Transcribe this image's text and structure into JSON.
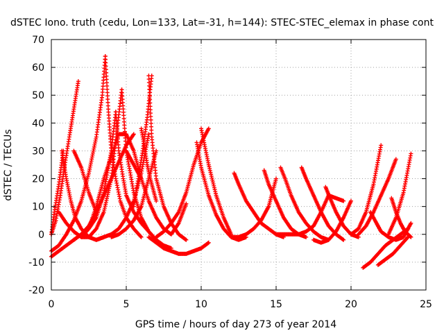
{
  "chart_data": {
    "type": "scatter",
    "title": "dSTEC Iono. truth (cedu, Lon=133, Lat=-31, h=144): STEC-STEC_elemax in phase cont",
    "xlabel": "GPS time / hours of day 273 of year 2014",
    "ylabel": "dSTEC  / TECUs",
    "xlim": [
      0,
      25
    ],
    "ylim": [
      -20,
      70
    ],
    "xticks": [
      "0",
      "5",
      "10",
      "15",
      "20",
      "25"
    ],
    "yticks": [
      "-20",
      "-10",
      "0",
      "10",
      "20",
      "30",
      "40",
      "50",
      "60",
      "70"
    ],
    "grid": true,
    "marker": "plus",
    "color": "#ff0000",
    "series": [
      {
        "x": [
          0.0,
          0.3,
          0.6,
          0.9,
          1.2,
          1.5,
          1.8
        ],
        "y": [
          0,
          5,
          14,
          25,
          35,
          45,
          55
        ]
      },
      {
        "x": [
          0.0,
          0.2,
          0.5,
          0.8
        ],
        "y": [
          0,
          8,
          18,
          30
        ]
      },
      {
        "x": [
          0.7,
          1.0,
          1.3,
          1.6,
          2.0,
          2.5,
          3.0,
          3.5
        ],
        "y": [
          30,
          20,
          12,
          6,
          2,
          -1,
          -2,
          -1
        ]
      },
      {
        "x": [
          0.0,
          0.5,
          1.0,
          1.5,
          2.0,
          2.5,
          3.0,
          3.4,
          3.6
        ],
        "y": [
          -6,
          -4,
          0,
          5,
          12,
          22,
          35,
          50,
          64
        ]
      },
      {
        "x": [
          3.6,
          3.8,
          4.0,
          4.3,
          4.6,
          5.0,
          5.5,
          6.0
        ],
        "y": [
          64,
          45,
          30,
          20,
          12,
          6,
          2,
          -1
        ]
      },
      {
        "x": [
          0.0,
          0.5,
          1.0,
          1.5,
          2.0,
          2.5,
          3.0,
          3.5,
          4.0,
          4.3
        ],
        "y": [
          -8,
          -6,
          -4,
          -2,
          0,
          2,
          6,
          15,
          30,
          44
        ]
      },
      {
        "x": [
          4.3,
          4.5,
          4.8,
          5.0,
          5.5,
          6.0,
          6.5,
          7.0
        ],
        "y": [
          44,
          30,
          20,
          14,
          8,
          4,
          1,
          -2
        ]
      },
      {
        "x": [
          0.5,
          1.0,
          1.5,
          2.0,
          2.5,
          3.0,
          3.5,
          4.0,
          4.7
        ],
        "y": [
          8,
          4,
          1,
          -1,
          -1,
          2,
          8,
          20,
          52
        ]
      },
      {
        "x": [
          4.7,
          5.0,
          5.5,
          6.0,
          6.5,
          7.0,
          7.5,
          8.0
        ],
        "y": [
          52,
          30,
          15,
          6,
          1,
          -2,
          -4,
          -5
        ]
      },
      {
        "x": [
          1.5,
          2.0,
          2.5,
          3.0,
          3.5,
          4.0,
          4.5,
          5.0,
          5.5
        ],
        "y": [
          -2,
          0,
          3,
          8,
          14,
          20,
          26,
          32,
          36
        ]
      },
      {
        "x": [
          1.5,
          2.0,
          2.5,
          3.0
        ],
        "y": [
          30,
          24,
          15,
          8
        ]
      },
      {
        "x": [
          2.0,
          2.5,
          3.0,
          3.5,
          4.0,
          4.5,
          5.0,
          5.5,
          6.0
        ],
        "y": [
          -1,
          2,
          10,
          20,
          28,
          36,
          36,
          30,
          20
        ]
      },
      {
        "x": [
          3.0,
          3.5,
          4.0,
          4.5,
          5.0,
          5.5,
          6.0,
          6.5
        ],
        "y": [
          -2,
          -1,
          0,
          2,
          6,
          12,
          22,
          36
        ]
      },
      {
        "x": [
          5.5,
          5.8,
          6.1,
          6.4,
          6.7
        ],
        "y": [
          10,
          20,
          30,
          42,
          57
        ]
      },
      {
        "x": [
          6.5,
          6.7,
          7.0,
          7.5,
          8.0,
          8.5,
          9.0
        ],
        "y": [
          57,
          35,
          20,
          10,
          4,
          0,
          -2
        ]
      },
      {
        "x": [
          5.0,
          5.5,
          6.0,
          6.5,
          7.0,
          7.5,
          8.0,
          8.5,
          9.0
        ],
        "y": [
          30,
          25,
          20,
          12,
          6,
          2,
          0,
          4,
          11
        ]
      },
      {
        "x": [
          4.0,
          4.5,
          5.0,
          5.5,
          6.0,
          6.5,
          7.0
        ],
        "y": [
          -1,
          0,
          2,
          5,
          10,
          20,
          30
        ]
      },
      {
        "x": [
          6.0,
          6.2,
          6.4,
          6.6,
          6.8,
          7.0
        ],
        "y": [
          38,
          32,
          25,
          20,
          16,
          12
        ]
      },
      {
        "x": [
          7.0,
          7.5,
          8.0,
          8.5,
          9.0,
          9.5,
          10.0,
          10.5
        ],
        "y": [
          -1,
          1,
          4,
          8,
          15,
          25,
          33,
          38
        ]
      },
      {
        "x": [
          9.7,
          10.0,
          10.5,
          11.0,
          11.5,
          12.0,
          12.5,
          13.0
        ],
        "y": [
          33,
          24,
          14,
          7,
          2,
          -1,
          -2,
          -1
        ]
      },
      {
        "x": [
          10.0,
          10.5,
          11.0,
          11.5,
          12.0
        ],
        "y": [
          38,
          25,
          14,
          6,
          0
        ]
      },
      {
        "x": [
          6.5,
          7.0,
          7.5,
          8.0,
          8.5,
          9.0,
          9.5,
          10.0,
          10.5
        ],
        "y": [
          -1,
          -3,
          -5,
          -6,
          -7,
          -7,
          -6,
          -5,
          -3
        ]
      },
      {
        "x": [
          12.2,
          12.5,
          13.0,
          13.5,
          14.0,
          14.5,
          15.0,
          15.5
        ],
        "y": [
          22,
          18,
          12,
          8,
          4,
          2,
          0,
          -1
        ]
      },
      {
        "x": [
          12.0,
          12.5,
          13.0,
          13.5,
          14.0,
          14.5,
          15.0
        ],
        "y": [
          -1,
          -1,
          0,
          2,
          5,
          10,
          20
        ]
      },
      {
        "x": [
          14.2,
          14.5,
          15.0,
          15.5,
          16.0,
          16.5,
          17.0
        ],
        "y": [
          23,
          18,
          12,
          6,
          2,
          0,
          -1
        ]
      },
      {
        "x": [
          15.3,
          15.6,
          16.0,
          16.5,
          17.0,
          17.5,
          18.0,
          18.5
        ],
        "y": [
          24,
          20,
          14,
          8,
          4,
          1,
          -1,
          -2
        ]
      },
      {
        "x": [
          16.7,
          17.0,
          17.5,
          18.0,
          18.5,
          19.0,
          19.5
        ],
        "y": [
          24,
          20,
          14,
          8,
          3,
          0,
          -2
        ]
      },
      {
        "x": [
          15.0,
          15.5,
          16.0,
          16.5,
          17.0,
          17.5,
          18.0,
          18.5,
          19.5
        ],
        "y": [
          0,
          0,
          0,
          0,
          1,
          3,
          8,
          14,
          12
        ]
      },
      {
        "x": [
          18.3,
          18.6,
          19.0,
          19.5,
          20.0,
          20.5
        ],
        "y": [
          17,
          13,
          8,
          3,
          0,
          -1
        ]
      },
      {
        "x": [
          17.5,
          18.0,
          18.5,
          19.0,
          19.5,
          20.0
        ],
        "y": [
          -2,
          -3,
          -2,
          1,
          6,
          12
        ]
      },
      {
        "x": [
          20.0,
          20.5,
          21.0,
          21.5,
          22.0
        ],
        "y": [
          0,
          2,
          8,
          18,
          32
        ]
      },
      {
        "x": [
          20.5,
          21.0,
          21.5,
          22.0,
          22.5,
          23.0
        ],
        "y": [
          0,
          3,
          8,
          14,
          20,
          27
        ]
      },
      {
        "x": [
          21.3,
          21.7,
          22.0,
          22.5,
          23.0,
          23.5,
          24.0
        ],
        "y": [
          8,
          4,
          1,
          -1,
          -2,
          -1,
          4
        ]
      },
      {
        "x": [
          22.7,
          23.0,
          23.3,
          23.6,
          24.0
        ],
        "y": [
          13,
          8,
          4,
          1,
          -1
        ]
      },
      {
        "x": [
          22.5,
          23.0,
          23.5,
          24.0
        ],
        "y": [
          0,
          6,
          15,
          29
        ]
      },
      {
        "x": [
          20.8,
          21.3,
          21.8,
          22.3,
          22.8,
          23.3,
          23.8
        ],
        "y": [
          -12,
          -10,
          -7,
          -4,
          -2,
          0,
          2
        ]
      },
      {
        "x": [
          21.8,
          22.3,
          22.8,
          23.3,
          23.8
        ],
        "y": [
          -11,
          -9,
          -7,
          -4,
          -1
        ]
      }
    ]
  }
}
